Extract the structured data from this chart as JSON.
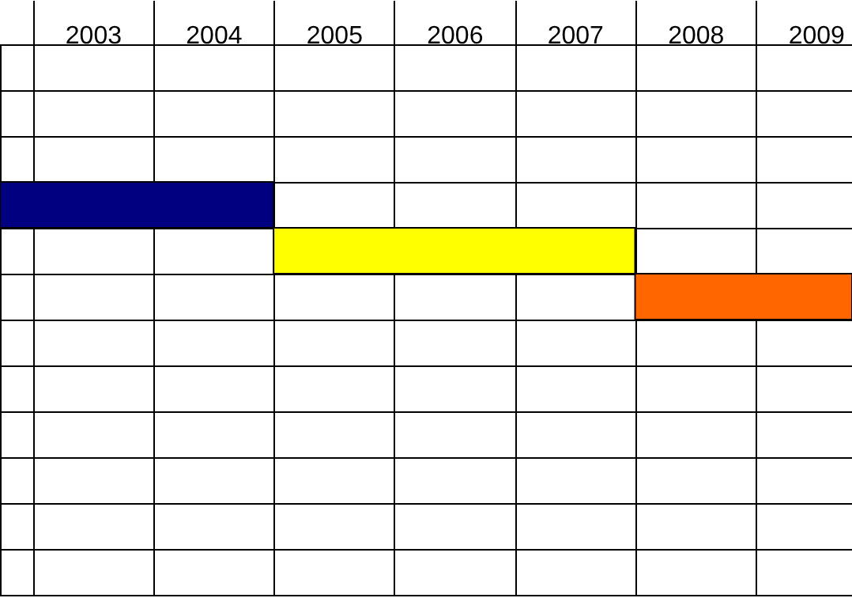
{
  "chart_data": {
    "type": "bar",
    "orientation": "horizontal",
    "categories": [
      null,
      null,
      null,
      null,
      null,
      null,
      null,
      null,
      null,
      null,
      null,
      null
    ],
    "values": [
      null,
      null,
      null,
      2.27,
      3,
      1.8,
      null,
      null,
      null,
      null,
      null,
      null
    ],
    "base": [
      null,
      null,
      null,
      2002.73,
      2005,
      2008,
      null,
      null,
      null,
      null,
      null,
      null
    ],
    "colors": [
      "#000080",
      "#000080",
      "#000080",
      "#000080",
      "#ffff00",
      "#ff6600",
      "#000080",
      "#000080",
      "#000080",
      "#000080",
      "#000080",
      "#000080"
    ],
    "xlim": [
      2002.73,
      2009.8
    ],
    "xticks": [
      {
        "value": 2003,
        "label": null
      },
      {
        "value": 2004,
        "label": null
      },
      {
        "value": 2005,
        "label": null
      },
      {
        "value": 2006,
        "label": null
      },
      {
        "value": 2007,
        "label": null
      },
      {
        "value": 2008,
        "label": null
      },
      {
        "value": 2009,
        "label": null
      },
      {
        "value": 2003.5,
        "label": "2003"
      },
      {
        "value": 2004.5,
        "label": "2004"
      },
      {
        "value": 2005.5,
        "label": "2005"
      },
      {
        "value": 2006.5,
        "label": "2006"
      },
      {
        "value": 2007.5,
        "label": "2007"
      },
      {
        "value": 2008.5,
        "label": "2008"
      },
      {
        "value": 2009.5,
        "label": "2009"
      }
    ],
    "grid": true,
    "tick_labels": "x"
  }
}
